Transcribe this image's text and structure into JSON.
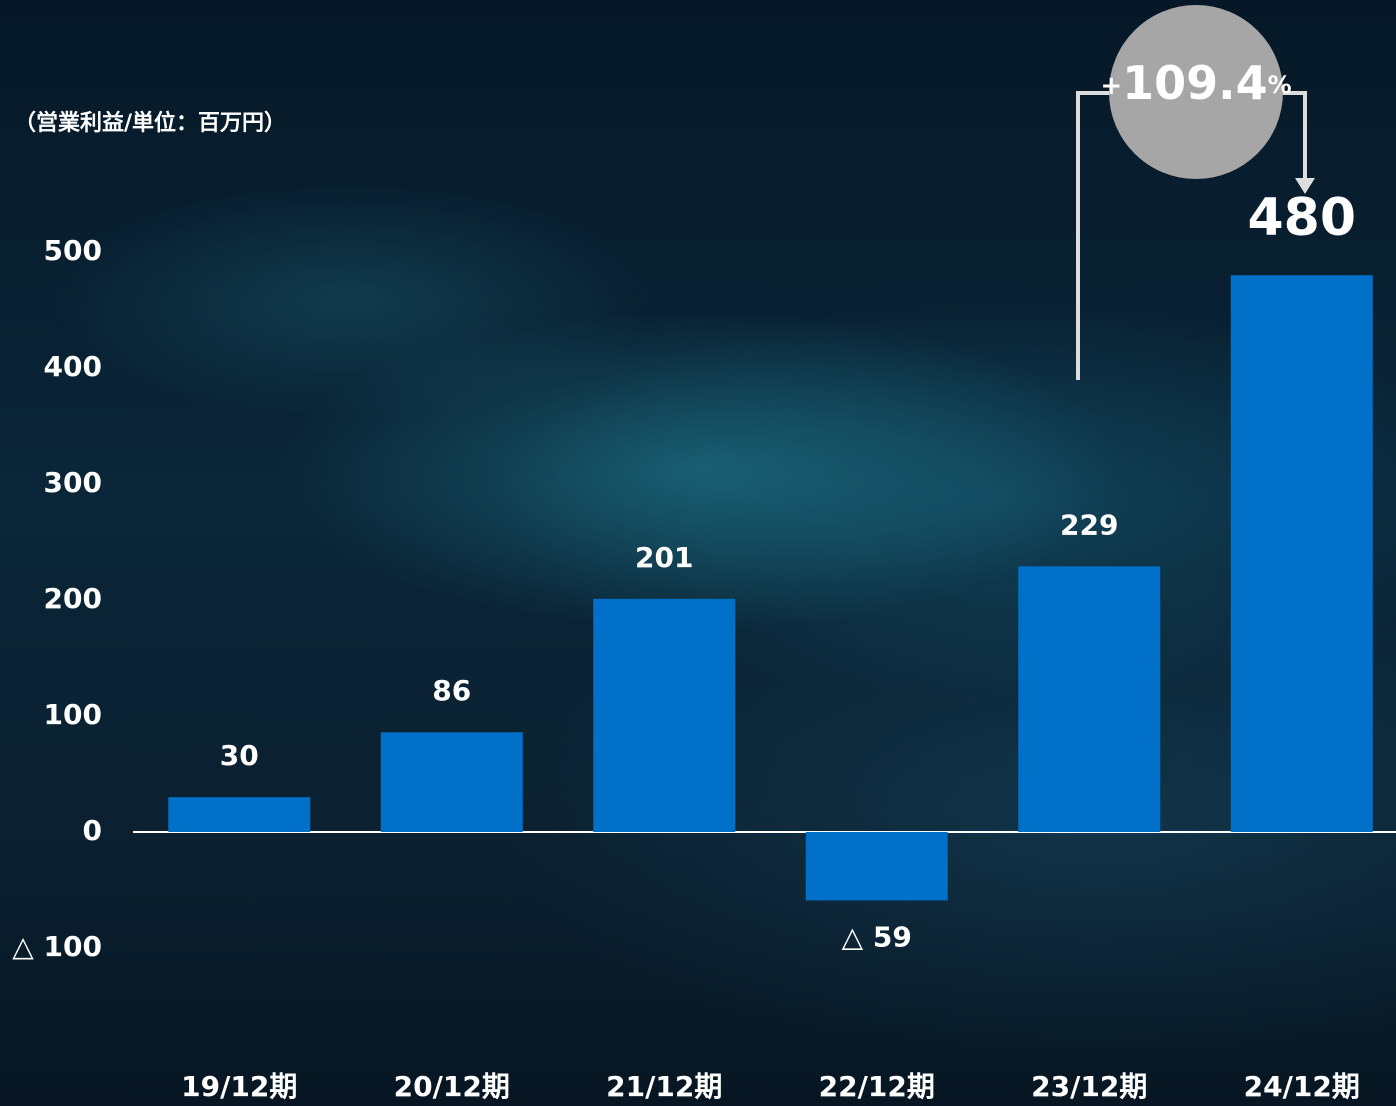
{
  "chart_data": {
    "type": "bar",
    "y_axis_label": "（営業利益/単位：百万円）",
    "categories": [
      "19/12期",
      "20/12期",
      "21/12期",
      "22/12期",
      "23/12期",
      "24/12期"
    ],
    "values": [
      30,
      86,
      201,
      -59,
      229,
      480
    ],
    "value_labels": [
      "30",
      "86",
      "201",
      "△ 59",
      "229",
      "480"
    ],
    "color": "#0070c8",
    "ylim": [
      -100,
      500
    ],
    "yticks": [
      {
        "value": -100,
        "label": "△ 100"
      },
      0,
      100,
      200,
      300,
      400,
      500
    ],
    "grid": false,
    "annotation": {
      "sign": "+",
      "value": 109.4,
      "unit": "%"
    }
  }
}
